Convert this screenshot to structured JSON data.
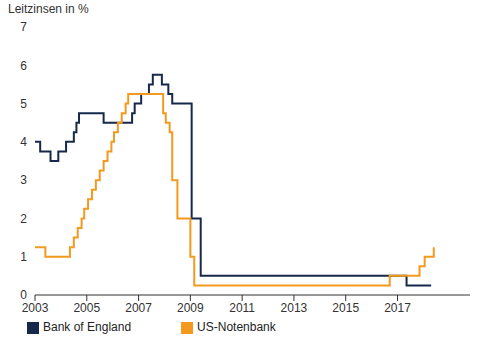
{
  "chart_data": {
    "type": "line",
    "y_label": "Leitzinsen in %",
    "xlim": [
      2003,
      2019.8
    ],
    "xticks": [
      2003,
      2005,
      2007,
      2009,
      2011,
      2013,
      2015,
      2017
    ],
    "ylim": [
      0,
      7
    ],
    "yticks": [
      0,
      1,
      2,
      3,
      4,
      5,
      6,
      7
    ],
    "grid": false,
    "legend": "bottom left",
    "series": [
      {
        "name": "Bank of England",
        "color": "#17294a",
        "x": [
          2003.0,
          2003.2,
          2003.6,
          2003.9,
          2004.2,
          2004.5,
          2004.6,
          2004.7,
          2005.65,
          2006.75,
          2006.85,
          2007.1,
          2007.4,
          2007.55,
          2007.9,
          2008.15,
          2008.3,
          2009.05,
          2009.4,
          2017.35,
          2018.3
        ],
        "values": [
          4.0,
          3.75,
          3.5,
          3.75,
          4.0,
          4.25,
          4.5,
          4.75,
          4.5,
          4.75,
          5.0,
          5.25,
          5.5,
          5.75,
          5.5,
          5.25,
          5.0,
          2.0,
          0.5,
          0.25,
          0.25
        ]
      },
      {
        "name": "US-Notenbank",
        "color": "#f39a1e",
        "x": [
          2003.0,
          2003.4,
          2004.35,
          2004.5,
          2004.65,
          2004.8,
          2004.9,
          2005.05,
          2005.2,
          2005.35,
          2005.5,
          2005.65,
          2005.8,
          2005.95,
          2006.05,
          2006.2,
          2006.35,
          2006.5,
          2006.6,
          2007.95,
          2008.05,
          2008.2,
          2008.3,
          2008.5,
          2009.0,
          2009.15,
          2016.7,
          2017.85,
          2018.05,
          2018.4
        ],
        "values": [
          1.25,
          1.0,
          1.25,
          1.5,
          1.75,
          2.0,
          2.25,
          2.5,
          2.75,
          3.0,
          3.25,
          3.5,
          3.75,
          4.0,
          4.25,
          4.5,
          4.75,
          5.0,
          5.25,
          4.75,
          4.5,
          4.25,
          3.0,
          2.0,
          1.0,
          0.25,
          0.5,
          0.75,
          1.0,
          1.25
        ]
      }
    ]
  }
}
